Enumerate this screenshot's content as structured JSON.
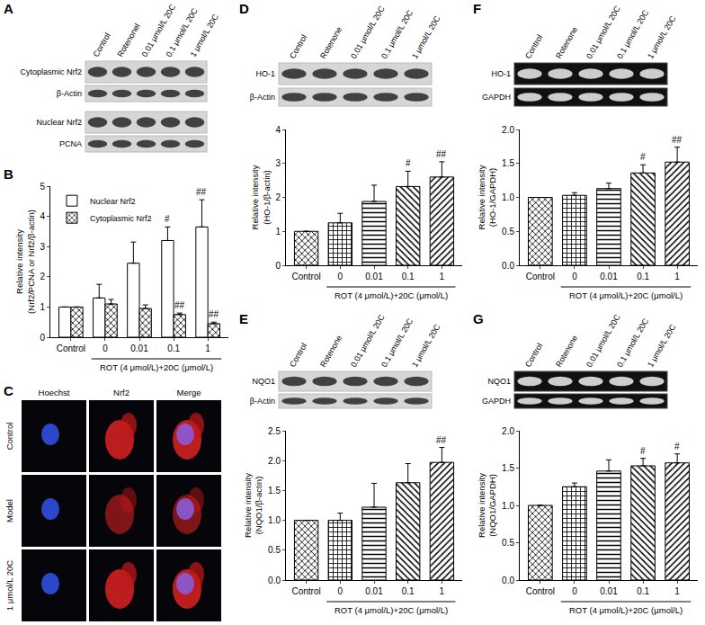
{
  "chart_data": [
    {
      "panel": "B",
      "type": "bar",
      "categories": [
        "Control",
        "0",
        "0.01",
        "0.1",
        "1"
      ],
      "xlabel": "ROT (4 μmol/L)+20C (μmol/L)",
      "ylabel": [
        "Relative intensity",
        "(Nrf2/PCNA or Nrf2/β-actin)"
      ],
      "series": [
        {
          "name": "Nuclear Nrf2",
          "values": [
            1,
            1.3,
            2.45,
            3.2,
            3.65
          ],
          "errors": [
            0,
            0.45,
            0.7,
            0.45,
            0.9
          ]
        },
        {
          "name": "Cytoplasmic Nrf2",
          "values": [
            1,
            1.1,
            0.95,
            0.75,
            0.45
          ],
          "errors": [
            0,
            0.15,
            0.12,
            0.05,
            0.05
          ]
        }
      ],
      "annotations": [
        {
          "text": "#",
          "category": "0.1",
          "series": "Nuclear Nrf2"
        },
        {
          "text": "##",
          "category": "1",
          "series": "Nuclear Nrf2"
        },
        {
          "text": "##",
          "category": "0.1",
          "series": "Cytoplasmic Nrf2"
        },
        {
          "text": "##",
          "category": "1",
          "series": "Cytoplasmic Nrf2"
        }
      ],
      "ylim": [
        0,
        5
      ],
      "yticks": [
        0,
        1,
        2,
        3,
        4,
        5
      ],
      "legend": "upper left",
      "grid": false
    },
    {
      "panel": "D",
      "type": "bar",
      "categories": [
        "Control",
        "0",
        "0.01",
        "0.1",
        "1"
      ],
      "xlabel": "ROT (4 μmol/L)+20C (μmol/L)",
      "ylabel": [
        "Relative intensity",
        "(HO-1/β-actin)"
      ],
      "series": [
        {
          "name": "HO-1/β-actin",
          "values": [
            1,
            1.25,
            1.88,
            2.32,
            2.6
          ],
          "errors": [
            0,
            0.28,
            0.48,
            0.45,
            0.45
          ]
        }
      ],
      "annotations": [
        {
          "text": "#",
          "category": "0.1",
          "series": "HO-1/β-actin"
        },
        {
          "text": "##",
          "category": "1",
          "series": "HO-1/β-actin"
        }
      ],
      "ylim": [
        0,
        4
      ],
      "yticks": [
        0,
        1,
        2,
        3,
        4
      ],
      "grid": false
    },
    {
      "panel": "E",
      "type": "bar",
      "categories": [
        "Control",
        "0",
        "0.01",
        "0.1",
        "1"
      ],
      "xlabel": "ROT (4 μmol/L)+20C (μmol/L)",
      "ylabel": [
        "Relative intensity",
        "(NQO1/β-actin)"
      ],
      "series": [
        {
          "name": "NQO1/β-actin",
          "values": [
            1,
            1.0,
            1.22,
            1.63,
            1.97
          ],
          "errors": [
            0,
            0.12,
            0.4,
            0.32,
            0.25
          ]
        }
      ],
      "annotations": [
        {
          "text": "##",
          "category": "1",
          "series": "NQO1/β-actin"
        }
      ],
      "ylim": [
        0,
        2.5
      ],
      "yticks": [
        {
          "value": 0,
          "label": "0.0"
        },
        {
          "value": 0.5,
          "label": "0.5"
        },
        {
          "value": 1,
          "label": "1.0"
        },
        {
          "value": 1.5,
          "label": "1.5"
        },
        {
          "value": 2,
          "label": "2.0"
        },
        {
          "value": 2.5,
          "label": "2.5"
        }
      ],
      "grid": false
    },
    {
      "panel": "F",
      "type": "bar",
      "categories": [
        "Control",
        "0",
        "0.01",
        "0.1",
        "1"
      ],
      "xlabel": "ROT (4 μmol/L)+20C (μmol/L)",
      "ylabel": [
        "Relative intensity",
        "(HO-1/GAPDH)"
      ],
      "series": [
        {
          "name": "HO-1/GAPDH",
          "values": [
            1,
            1.03,
            1.13,
            1.36,
            1.52
          ],
          "errors": [
            0,
            0.04,
            0.08,
            0.12,
            0.22
          ]
        }
      ],
      "annotations": [
        {
          "text": "#",
          "category": "0.1",
          "series": "HO-1/GAPDH"
        },
        {
          "text": "##",
          "category": "1",
          "series": "HO-1/GAPDH"
        }
      ],
      "ylim": [
        0,
        2
      ],
      "yticks": [
        {
          "value": 0,
          "label": "0.0"
        },
        {
          "value": 0.5,
          "label": "0.5"
        },
        {
          "value": 1,
          "label": "1.0"
        },
        {
          "value": 1.5,
          "label": "1.5"
        },
        {
          "value": 2,
          "label": "2.0"
        }
      ],
      "grid": false
    },
    {
      "panel": "G",
      "type": "bar",
      "categories": [
        "Control",
        "0",
        "0.01",
        "0.1",
        "1"
      ],
      "xlabel": "ROT (4 μmol/L)+20C (μmol/L)",
      "ylabel": [
        "Relative intensity",
        "(NQO1/GAPDH)"
      ],
      "series": [
        {
          "name": "NQO1/GAPDH",
          "values": [
            1,
            1.25,
            1.46,
            1.53,
            1.57
          ],
          "errors": [
            0,
            0.05,
            0.15,
            0.1,
            0.12
          ]
        }
      ],
      "annotations": [
        {
          "text": "#",
          "category": "0.1",
          "series": "NQO1/GAPDH"
        },
        {
          "text": "#",
          "category": "1",
          "series": "NQO1/GAPDH"
        }
      ],
      "ylim": [
        0,
        2
      ],
      "yticks": [
        {
          "value": 0,
          "label": "0.0"
        },
        {
          "value": 0.5,
          "label": "0.5"
        },
        {
          "value": 1,
          "label": "1.0"
        },
        {
          "value": 1.5,
          "label": "1.5"
        },
        {
          "value": 2,
          "label": "2.0"
        }
      ],
      "grid": false
    }
  ],
  "blots": [
    {
      "panel": "A",
      "kind": "western",
      "lanes": [
        "Control",
        "Rotenonel",
        "0.01 μmol/L 20C",
        "0.1 μmol/L 20C",
        "1 μmol/L 20C"
      ],
      "rows": [
        "Cytoplasmic Nrf2",
        "β-Actin",
        "Nuclear Nrf2",
        "PCNA"
      ]
    },
    {
      "panel": "D",
      "kind": "western",
      "lanes": [
        "Control",
        "Rotenone",
        "0.01 μmol/L 20C",
        "0.1 μmol/L 20C",
        "1 μmol/L 20C"
      ],
      "rows": [
        "HO-1",
        "β-Actin"
      ]
    },
    {
      "panel": "E",
      "kind": "western",
      "lanes": [
        "Control",
        "Rotenone",
        "0.01 μmol/L 20C",
        "0.1 μmol/L 20C",
        "1 μmol/L 20C"
      ],
      "rows": [
        "NQO1",
        "β-Actin"
      ]
    },
    {
      "panel": "F",
      "kind": "gel",
      "lanes": [
        "Control",
        "Rotenone",
        "0.01 μmol/L 20C",
        "0.1 μmol/L 20C",
        "1 μmol/L 20C"
      ],
      "rows": [
        "HO-1",
        "GAPDH"
      ]
    },
    {
      "panel": "G",
      "kind": "gel",
      "lanes": [
        "Control",
        "Rotenone",
        "0.01 μmol/L 20C",
        "0.1 μmol/L 20C",
        "1 μmol/L 20C"
      ],
      "rows": [
        "NQO1",
        "GAPDH"
      ]
    }
  ],
  "images": {
    "panel": "C",
    "columns": [
      "Hoechst",
      "Nrf2",
      "Merge"
    ],
    "rows": [
      "Control",
      "Model",
      "1 μmol/L 20C"
    ]
  }
}
